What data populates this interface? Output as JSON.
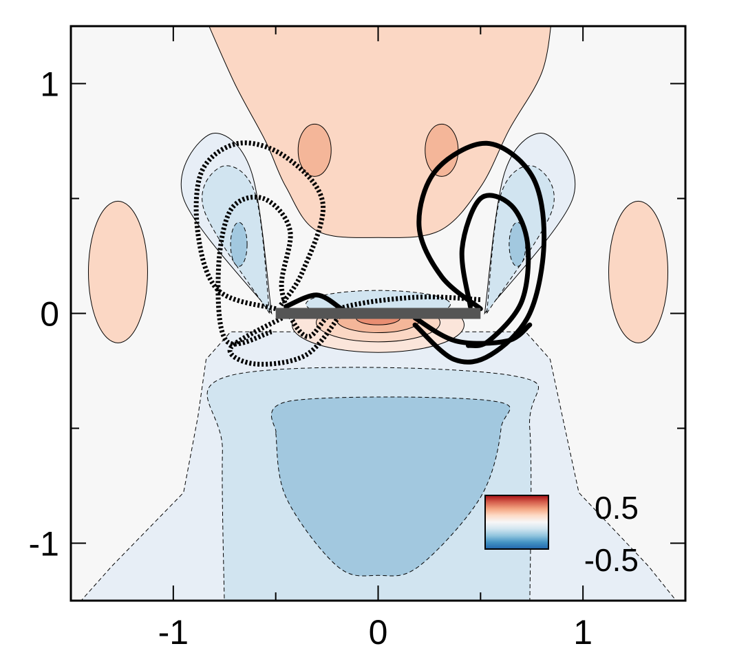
{
  "chart_data": {
    "type": "contour",
    "title": "",
    "xlabel": "",
    "ylabel": "",
    "xlim": [
      -1.5,
      1.5
    ],
    "ylim": [
      -1.25,
      1.25
    ],
    "x_ticks": [
      {
        "value": -1,
        "label": "-1"
      },
      {
        "value": 0,
        "label": "0"
      },
      {
        "value": 1,
        "label": "1"
      }
    ],
    "y_ticks": [
      {
        "value": 1,
        "label": "1"
      },
      {
        "value": 0,
        "label": "0"
      },
      {
        "value": -1,
        "label": "-1"
      }
    ],
    "minor_tick_step": 0.5,
    "grid": false,
    "colorbar": {
      "placement": "bottom-right",
      "max_label": "0.5",
      "min_label": "-0.5",
      "colors": [
        "#a50f15",
        "#d6604d",
        "#f4a582",
        "#fddbc7",
        "#f7f7f7",
        "#d1e5f0",
        "#92c5de",
        "#4393c3",
        "#2166ac"
      ]
    },
    "levels": {
      "positive_colors": [
        "#fbe5da",
        "#fbd7c4",
        "#f4b699",
        "#e98e72",
        "#d9604a"
      ],
      "negative_colors": [
        "#e7eef6",
        "#d1e4f0",
        "#a2c8df",
        "#7fb2d4"
      ],
      "background": "#f7f7f7"
    },
    "plate": {
      "x": [
        -0.5,
        0.5
      ],
      "y": 0
    },
    "trajectories": [
      {
        "style": "dashed",
        "points": [
          [
            -0.5,
            0.02
          ],
          [
            -0.78,
            0.1
          ],
          [
            -0.88,
            0.35
          ],
          [
            -0.86,
            0.62
          ],
          [
            -0.68,
            0.74
          ],
          [
            -0.45,
            0.68
          ],
          [
            -0.27,
            0.48
          ],
          [
            -0.37,
            0.18
          ],
          [
            -0.48,
            0.03
          ]
        ]
      },
      {
        "style": "dashed",
        "points": [
          [
            -0.52,
            -0.08
          ],
          [
            -0.74,
            -0.12
          ],
          [
            -0.78,
            0.18
          ],
          [
            -0.72,
            0.45
          ],
          [
            -0.56,
            0.5
          ],
          [
            -0.43,
            0.36
          ],
          [
            -0.47,
            0.1
          ],
          [
            -0.35,
            -0.1
          ],
          [
            -0.19,
            0.02
          ],
          [
            0.18,
            0.07
          ],
          [
            0.5,
            0.06
          ]
        ]
      },
      {
        "style": "dashed",
        "points": [
          [
            -0.47,
            -0.02
          ],
          [
            -0.72,
            -0.15
          ],
          [
            -0.6,
            -0.22
          ],
          [
            -0.35,
            -0.18
          ],
          [
            -0.18,
            0.0
          ]
        ]
      },
      {
        "style": "solid",
        "points": [
          [
            0.5,
            0.02
          ],
          [
            0.31,
            0.16
          ],
          [
            0.2,
            0.38
          ],
          [
            0.28,
            0.62
          ],
          [
            0.53,
            0.74
          ],
          [
            0.75,
            0.6
          ],
          [
            0.81,
            0.32
          ],
          [
            0.74,
            0.0
          ],
          [
            0.55,
            -0.18
          ],
          [
            0.37,
            -0.2
          ],
          [
            0.18,
            -0.05
          ]
        ]
      },
      {
        "style": "solid",
        "points": [
          [
            0.45,
            0.03
          ],
          [
            0.41,
            0.28
          ],
          [
            0.5,
            0.5
          ],
          [
            0.65,
            0.47
          ],
          [
            0.73,
            0.3
          ],
          [
            0.7,
            0.05
          ],
          [
            0.54,
            -0.12
          ],
          [
            0.44,
            -0.14
          ]
        ]
      },
      {
        "style": "solid",
        "points": [
          [
            -0.45,
            0.03
          ],
          [
            -0.3,
            0.08
          ],
          [
            -0.18,
            0.02
          ]
        ]
      },
      {
        "style": "solid",
        "points": [
          [
            0.18,
            -0.02
          ],
          [
            0.38,
            -0.12
          ],
          [
            0.63,
            -0.12
          ],
          [
            0.74,
            -0.05
          ]
        ]
      }
    ]
  }
}
